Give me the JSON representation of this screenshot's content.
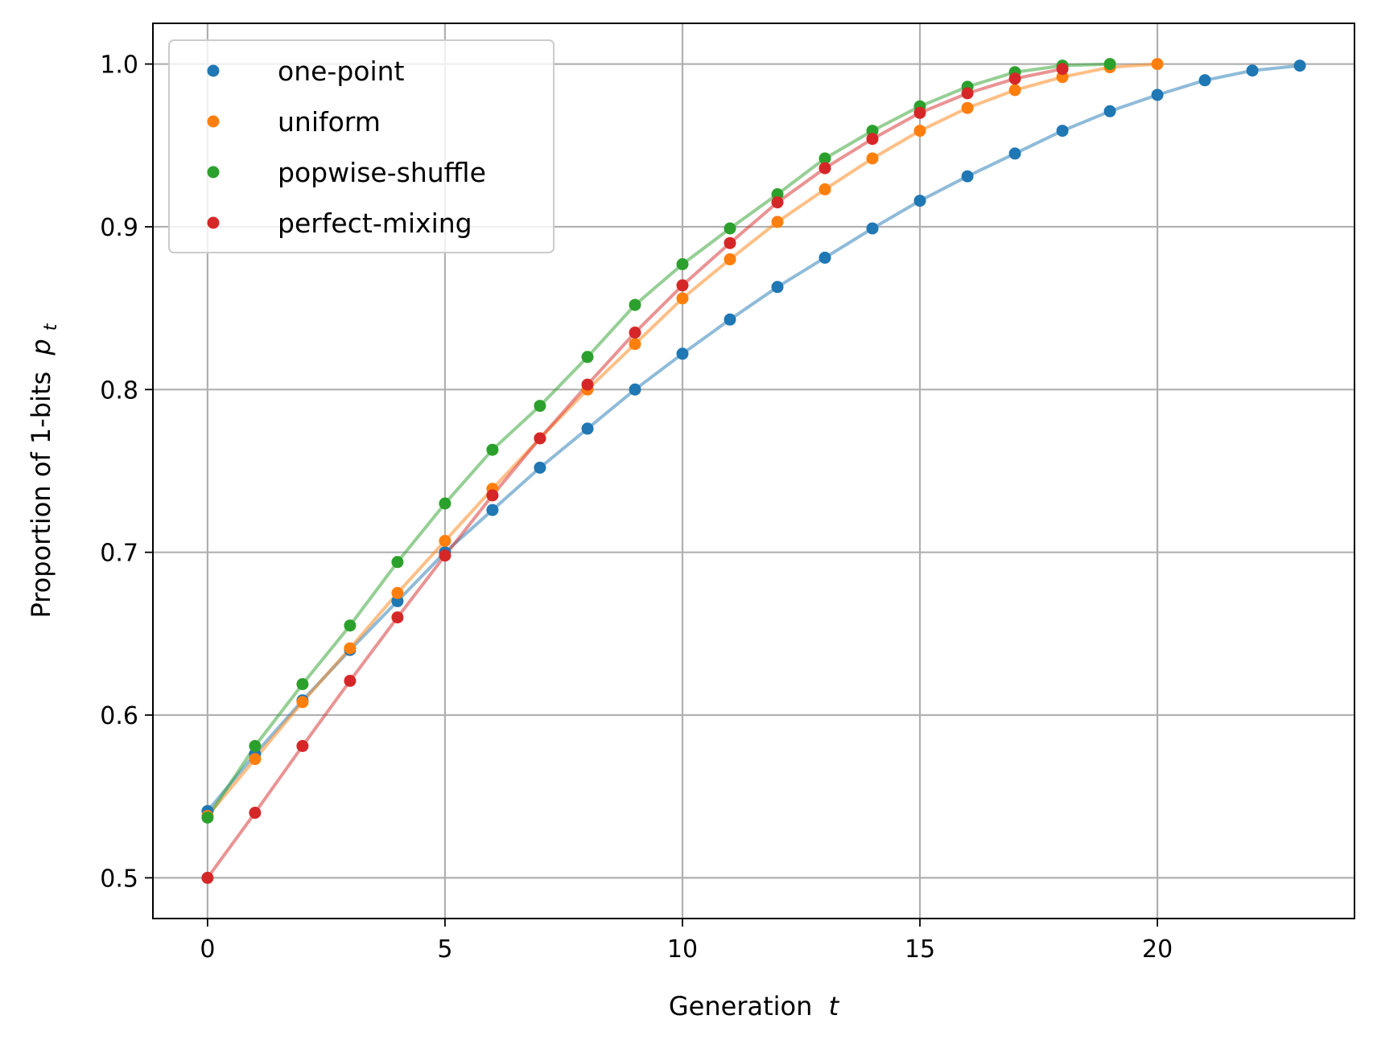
{
  "chart_data": {
    "type": "line",
    "xlabel": "Generation",
    "xlabel_var": "t",
    "ylabel": "Proportion of 1-bits",
    "ylabel_var": "p",
    "ylabel_sub": "t",
    "xlim": [
      -1.15,
      24.15
    ],
    "ylim": [
      0.475,
      1.025
    ],
    "xticks": [
      0,
      5,
      10,
      15,
      20
    ],
    "yticks": [
      0.5,
      0.6,
      0.7,
      0.8,
      0.9,
      1.0
    ],
    "xtick_labels": [
      "0",
      "5",
      "10",
      "15",
      "20"
    ],
    "ytick_labels": [
      "0.5",
      "0.6",
      "0.7",
      "0.8",
      "0.9",
      "1.0"
    ],
    "grid": true,
    "legend_position": "top-left",
    "series": [
      {
        "name": "one-point",
        "color": "#1f77b4",
        "x": [
          0,
          1,
          2,
          3,
          4,
          5,
          6,
          7,
          8,
          9,
          10,
          11,
          12,
          13,
          14,
          15,
          16,
          17,
          18,
          19,
          20,
          21,
          22,
          23
        ],
        "y": [
          0.541,
          0.576,
          0.609,
          0.64,
          0.67,
          0.7,
          0.726,
          0.752,
          0.776,
          0.8,
          0.822,
          0.843,
          0.863,
          0.881,
          0.899,
          0.916,
          0.931,
          0.945,
          0.959,
          0.971,
          0.981,
          0.99,
          0.996,
          0.999
        ]
      },
      {
        "name": "uniform",
        "color": "#ff7f0e",
        "x": [
          0,
          1,
          2,
          3,
          4,
          5,
          6,
          7,
          8,
          9,
          10,
          11,
          12,
          13,
          14,
          15,
          16,
          17,
          18,
          19,
          20
        ],
        "y": [
          0.538,
          0.573,
          0.608,
          0.641,
          0.675,
          0.707,
          0.739,
          0.77,
          0.8,
          0.828,
          0.856,
          0.88,
          0.903,
          0.923,
          0.942,
          0.959,
          0.973,
          0.984,
          0.992,
          0.998,
          1.0
        ]
      },
      {
        "name": "popwise-shuffle",
        "color": "#2ca02c",
        "x": [
          0,
          1,
          2,
          3,
          4,
          5,
          6,
          7,
          8,
          9,
          10,
          11,
          12,
          13,
          14,
          15,
          16,
          17,
          18,
          19
        ],
        "y": [
          0.537,
          0.581,
          0.619,
          0.655,
          0.694,
          0.73,
          0.763,
          0.79,
          0.82,
          0.852,
          0.877,
          0.899,
          0.92,
          0.942,
          0.959,
          0.974,
          0.986,
          0.995,
          0.999,
          1.0
        ]
      },
      {
        "name": "perfect-mixing",
        "color": "#d62728",
        "x": [
          0,
          1,
          2,
          3,
          4,
          5,
          6,
          7,
          8,
          9,
          10,
          11,
          12,
          13,
          14,
          15,
          16,
          17,
          18
        ],
        "y": [
          0.5,
          0.54,
          0.581,
          0.621,
          0.66,
          0.698,
          0.735,
          0.77,
          0.803,
          0.835,
          0.864,
          0.89,
          0.915,
          0.936,
          0.954,
          0.97,
          0.982,
          0.991,
          0.997
        ]
      }
    ]
  }
}
